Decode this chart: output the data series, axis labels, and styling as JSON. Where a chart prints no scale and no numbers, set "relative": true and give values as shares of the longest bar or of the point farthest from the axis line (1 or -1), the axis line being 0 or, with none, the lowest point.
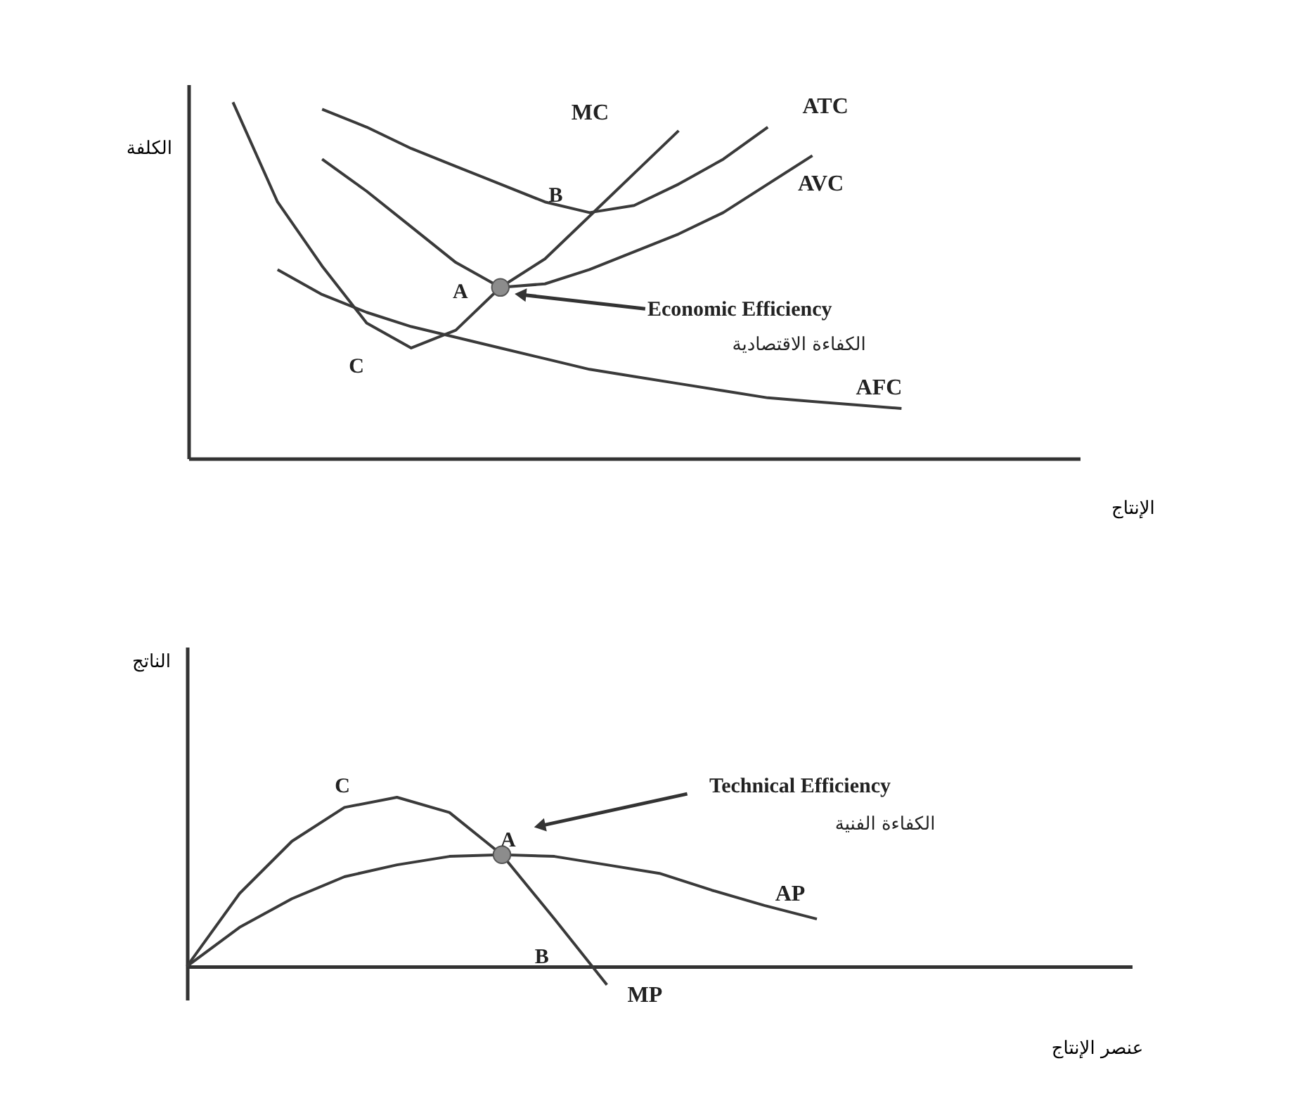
{
  "chart_data": [
    {
      "type": "line",
      "relative": true,
      "ylabel": "الكلفة",
      "xlabel": "الإنتاج",
      "legend": false,
      "grid": false,
      "categories": [
        null,
        null,
        null,
        null,
        null,
        null,
        null,
        null,
        null,
        null,
        null,
        null,
        null,
        null,
        null,
        null,
        null,
        null,
        null,
        null,
        null
      ],
      "series": [
        {
          "name": "MC",
          "color": "#3a3a3a",
          "values": [
            null,
            1,
            0.72,
            0.54,
            0.38,
            0.31,
            0.36,
            0.48,
            0.56,
            0.68,
            0.8,
            0.92,
            null,
            null,
            null,
            null,
            null,
            null,
            null,
            null,
            null
          ]
        },
        {
          "name": "ATC",
          "color": "#3a3a3a",
          "values": [
            null,
            null,
            null,
            0.98,
            0.93,
            0.87,
            0.82,
            0.77,
            0.72,
            0.69,
            0.71,
            0.77,
            0.84,
            0.93,
            null,
            null,
            null,
            null,
            null,
            null,
            null
          ]
        },
        {
          "name": "AVC",
          "color": "#3a3a3a",
          "values": [
            null,
            null,
            null,
            0.84,
            0.75,
            0.65,
            0.55,
            0.48,
            0.49,
            0.53,
            0.58,
            0.63,
            0.69,
            0.77,
            0.85,
            null,
            null,
            null,
            null,
            null,
            null
          ]
        },
        {
          "name": "AFC",
          "color": "#3a3a3a",
          "values": [
            null,
            null,
            0.53,
            0.46,
            0.41,
            0.37,
            0.34,
            0.31,
            0.28,
            0.25,
            0.23,
            0.21,
            0.19,
            0.17,
            0.16,
            0.15,
            0.14,
            null,
            null,
            null,
            null
          ]
        }
      ],
      "annotations": [
        "A",
        "B",
        "C",
        "Economic Efficiency",
        "الكفاءة الاقتصادية"
      ]
    },
    {
      "type": "line",
      "relative": true,
      "ylabel": "الناتج",
      "xlabel": "عنصر الإنتاج",
      "legend": false,
      "grid": false,
      "categories": [
        null,
        null,
        null,
        null,
        null,
        null,
        null,
        null,
        null,
        null,
        null,
        null,
        null,
        null,
        null,
        null,
        null,
        null,
        null
      ],
      "series": [
        {
          "name": "MP",
          "color": "#3a3a3a",
          "values": [
            0,
            0.43,
            0.74,
            0.94,
            1,
            0.91,
            0.66,
            0.28,
            -0.11,
            null,
            null,
            null,
            null,
            null,
            null,
            null,
            null,
            null,
            null
          ]
        },
        {
          "name": "AP",
          "color": "#3a3a3a",
          "values": [
            0,
            0.23,
            0.4,
            0.53,
            0.6,
            0.65,
            0.66,
            0.65,
            0.6,
            0.55,
            0.45,
            0.36,
            0.28,
            null,
            null,
            null,
            null,
            null,
            null
          ]
        }
      ],
      "annotations": [
        "C",
        "A",
        "B",
        "Technical Efficiency",
        "الكفاءة الفنية"
      ]
    }
  ]
}
